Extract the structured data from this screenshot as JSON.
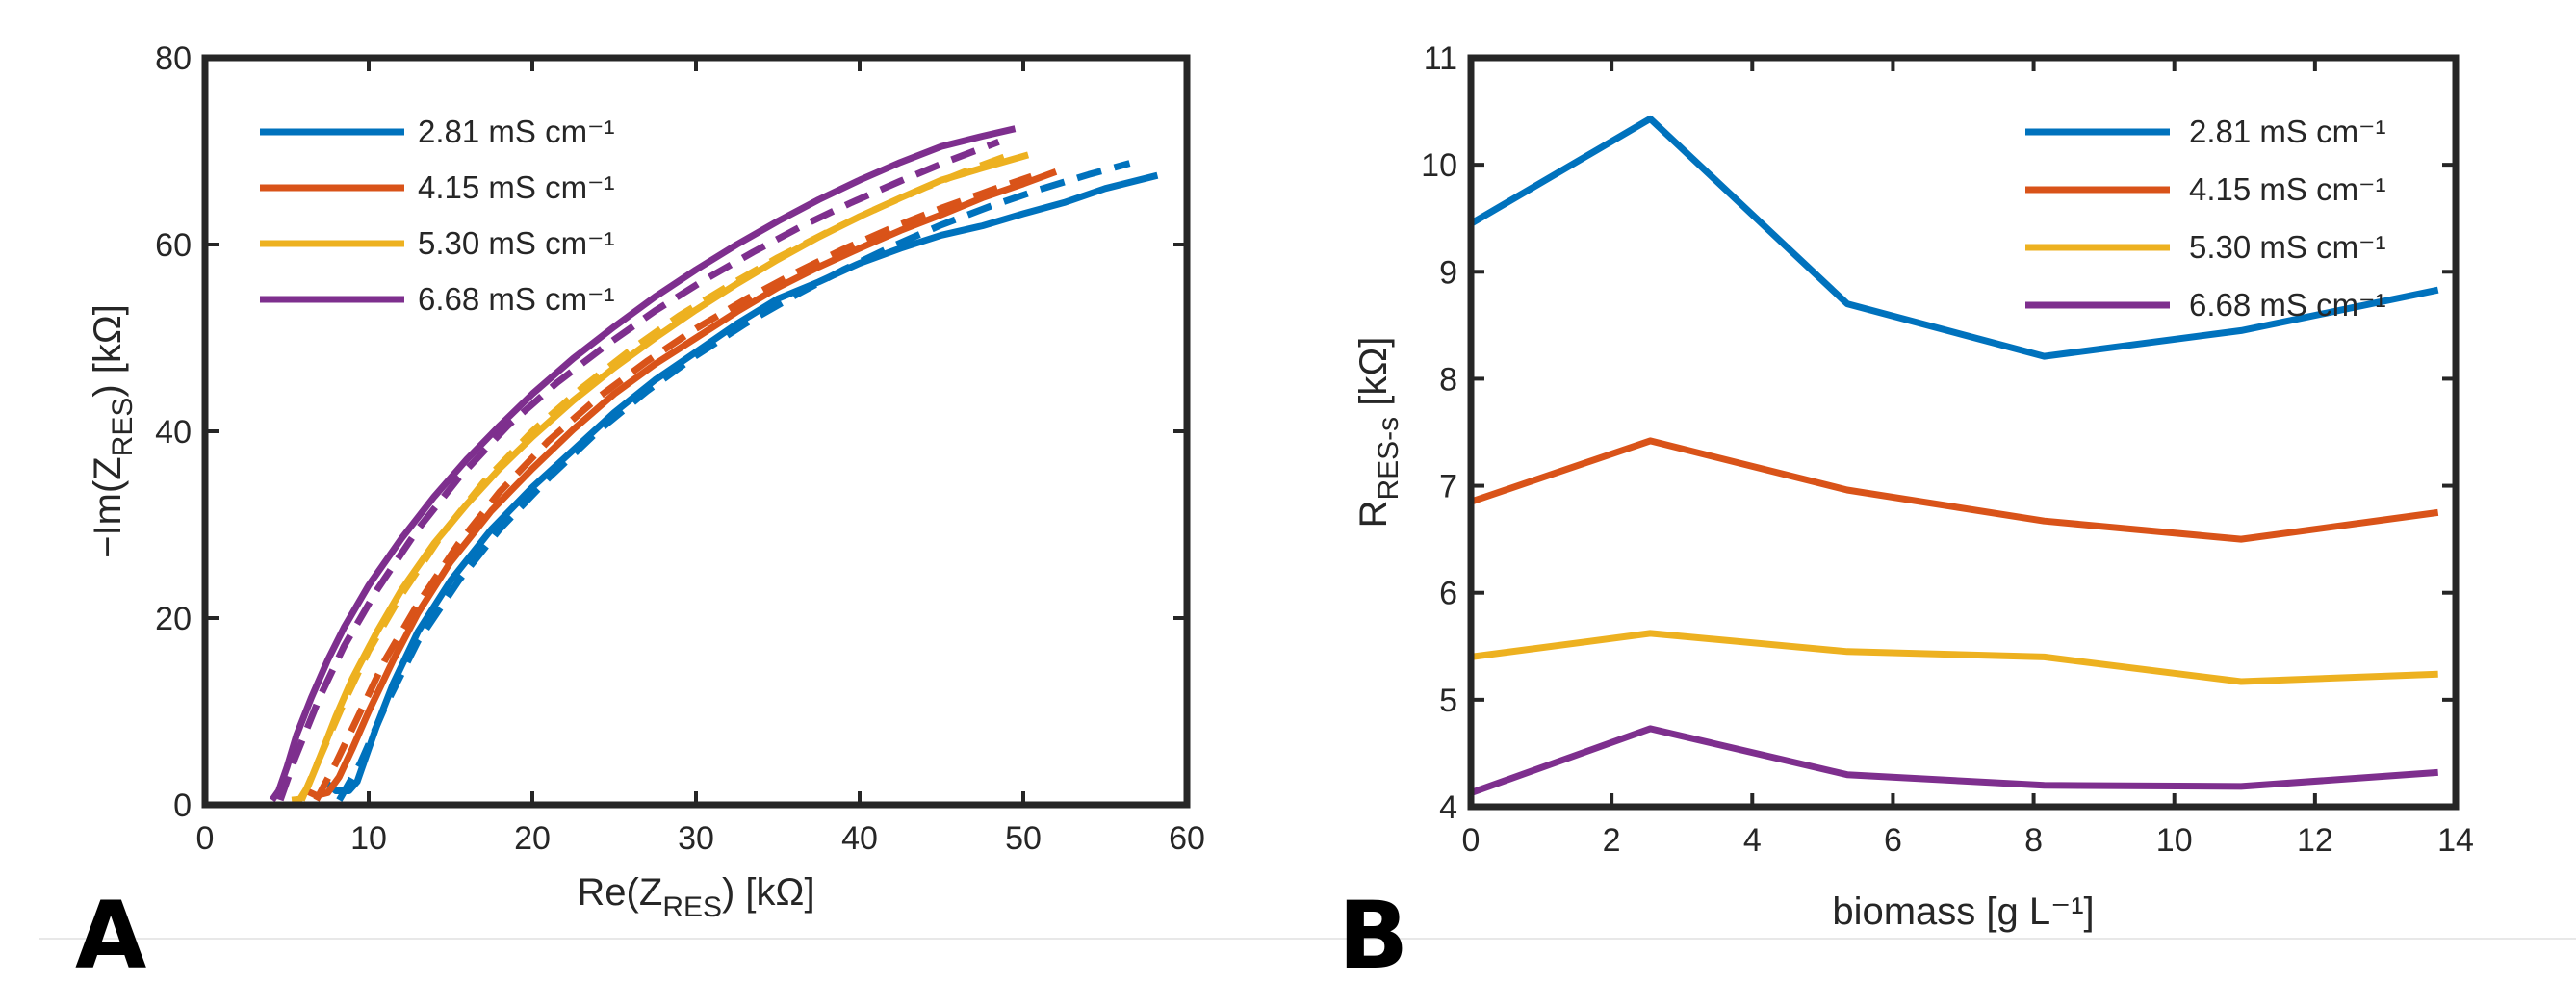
{
  "colors": {
    "s1": "#0072BD",
    "s2": "#D95319",
    "s3": "#EDB120",
    "s4": "#7E2F8E"
  },
  "legend_labels": [
    "2.81 mS cm⁻¹",
    "4.15 mS cm⁻¹",
    "5.30 mS cm⁻¹",
    "6.68 mS cm⁻¹"
  ],
  "panel_labels": {
    "a": "A",
    "b": "B"
  },
  "chart_data": [
    {
      "type": "line",
      "panel": "A",
      "title": "",
      "xlabel": "Re(Z_RES) [kΩ]",
      "ylabel": "−Im(Z_RES) [kΩ]",
      "xlim": [
        0,
        60
      ],
      "ylim": [
        0,
        80
      ],
      "xticks": [
        0,
        10,
        20,
        30,
        40,
        50,
        60
      ],
      "yticks": [
        0,
        20,
        40,
        60,
        80
      ],
      "legend_location": "top-left",
      "series": [
        {
          "name": "2.81 mS cm⁻¹",
          "style": "solid",
          "x": [
            7.3,
            8.0,
            8.8,
            9.3,
            9.7,
            10.5,
            11.5,
            13,
            15,
            17.5,
            20,
            22.5,
            25,
            27.5,
            30,
            32.5,
            35,
            37.5,
            40,
            42.5,
            45,
            47.5,
            50,
            52.5,
            55,
            58.2
          ],
          "y": [
            2.5,
            1.5,
            1.5,
            2.5,
            4.5,
            8.5,
            13,
            18.5,
            24,
            29.5,
            34,
            38,
            42,
            45.5,
            48.5,
            51.5,
            54.2,
            56,
            58,
            59.6,
            61,
            62,
            63.3,
            64.5,
            66,
            67.4
          ]
        },
        {
          "name": "2.81 mS cm⁻¹ fit",
          "style": "dashed",
          "x": [
            8.2,
            9.5,
            11,
            13,
            15.5,
            18,
            21,
            24,
            27,
            30,
            33,
            36,
            39,
            42,
            45,
            48,
            51,
            54,
            56.5
          ],
          "y": [
            0.5,
            4.5,
            10.5,
            17.5,
            24,
            29.5,
            35,
            40,
            44.3,
            48.1,
            51.5,
            54.5,
            57.3,
            59.8,
            62.1,
            64.1,
            65.9,
            67.5,
            68.7
          ]
        },
        {
          "name": "4.15 mS cm⁻¹",
          "style": "solid",
          "x": [
            6.2,
            6.8,
            7.5,
            8.2,
            9.0,
            10,
            11.5,
            13,
            15,
            17.5,
            20,
            22.5,
            25,
            27.5,
            30,
            32.5,
            35,
            37.5,
            40,
            42.5,
            45,
            47.5,
            50,
            52
          ],
          "y": [
            1.5,
            1.0,
            1.3,
            3,
            6,
            10,
            15.5,
            20.5,
            26,
            31.5,
            36,
            40.2,
            44,
            47.2,
            50,
            52.8,
            55.4,
            57.6,
            59.6,
            61.5,
            63.2,
            65,
            66.5,
            67.8
          ]
        },
        {
          "name": "4.15 mS cm⁻¹ fit",
          "style": "dashed",
          "x": [
            6.8,
            8,
            9.5,
            11,
            13,
            15.5,
            18,
            21,
            24,
            27,
            30,
            33,
            36,
            39,
            42,
            45,
            48,
            50.5
          ],
          "y": [
            0.5,
            4.5,
            10,
            15.5,
            21.5,
            28,
            33.5,
            39,
            43.6,
            47.5,
            51,
            54.1,
            56.9,
            59.5,
            61.8,
            63.9,
            65.8,
            67.3
          ]
        },
        {
          "name": "5.30 mS cm⁻¹",
          "style": "solid",
          "x": [
            5.3,
            5.8,
            6.3,
            7,
            8,
            9,
            10.5,
            12,
            14,
            16,
            18,
            20,
            22.5,
            25,
            27.5,
            30,
            32.5,
            35,
            37.5,
            40,
            42.5,
            45,
            47.5,
            50.3
          ],
          "y": [
            0.5,
            0.6,
            2,
            5,
            9.5,
            13.5,
            18.5,
            23,
            28,
            32.2,
            36,
            39.4,
            43.3,
            46.8,
            50,
            53,
            55.8,
            58.4,
            60.8,
            63,
            65,
            66.9,
            68.2,
            69.6
          ]
        },
        {
          "name": "5.30 mS cm⁻¹ fit",
          "style": "dashed",
          "x": [
            5.9,
            7,
            8.5,
            10,
            12,
            14.5,
            17,
            20,
            23,
            26,
            29,
            32,
            35,
            38,
            41,
            44,
            47,
            49.5
          ],
          "y": [
            0.5,
            5,
            11,
            16.5,
            22.5,
            29,
            34.5,
            40,
            44.6,
            48.7,
            52.4,
            55.6,
            58.6,
            61.3,
            63.8,
            66.1,
            68.2,
            69.8
          ]
        },
        {
          "name": "6.68 mS cm⁻¹",
          "style": "solid",
          "x": [
            4.1,
            4.5,
            5.0,
            5.6,
            6.5,
            7.5,
            8.5,
            10,
            12,
            14,
            16,
            18,
            20,
            22.5,
            25,
            27.5,
            30,
            32.5,
            35,
            37.5,
            40,
            42.5,
            45,
            47.5,
            49.5
          ],
          "y": [
            0.5,
            1.5,
            4,
            7.5,
            11.5,
            15.5,
            19,
            23.5,
            28.5,
            33,
            37,
            40.6,
            44,
            47.8,
            51.2,
            54.4,
            57.3,
            60,
            62.5,
            64.8,
            66.9,
            68.8,
            70.5,
            71.6,
            72.4
          ]
        },
        {
          "name": "6.68 mS cm⁻¹ fit",
          "style": "dashed",
          "x": [
            4.6,
            5.5,
            7,
            8.5,
            10.5,
            13,
            15.5,
            18.5,
            21.5,
            24.5,
            27.5,
            30.5,
            33.5,
            36.5,
            39.5,
            42.5,
            45.5,
            48.5
          ],
          "y": [
            0.5,
            5,
            11.5,
            17,
            23,
            29.5,
            35,
            40.6,
            45.2,
            49.2,
            52.9,
            56.2,
            59.2,
            62,
            64.5,
            66.8,
            69,
            71
          ]
        }
      ]
    },
    {
      "type": "line",
      "panel": "B",
      "title": "",
      "xlabel": "biomass [g L⁻¹]",
      "ylabel": "R_RES-s [kΩ]",
      "xlim": [
        0,
        14
      ],
      "ylim": [
        4,
        11
      ],
      "xticks": [
        0,
        2,
        4,
        6,
        8,
        10,
        12,
        14
      ],
      "yticks": [
        4,
        5,
        6,
        7,
        8,
        9,
        10,
        11
      ],
      "legend_location": "top-right",
      "x": [
        0,
        2.55,
        5.35,
        8.15,
        10.95,
        13.75
      ],
      "series": [
        {
          "name": "2.81 mS cm⁻¹",
          "values": [
            9.45,
            10.43,
            8.7,
            8.21,
            8.45,
            8.83
          ]
        },
        {
          "name": "4.15 mS cm⁻¹",
          "values": [
            6.85,
            7.42,
            6.96,
            6.67,
            6.5,
            6.75
          ]
        },
        {
          "name": "5.30 mS cm⁻¹",
          "values": [
            5.4,
            5.62,
            5.45,
            5.4,
            5.17,
            5.24
          ]
        },
        {
          "name": "6.68 mS cm⁻¹",
          "values": [
            4.13,
            4.73,
            4.3,
            4.2,
            4.19,
            4.32
          ]
        }
      ]
    }
  ]
}
